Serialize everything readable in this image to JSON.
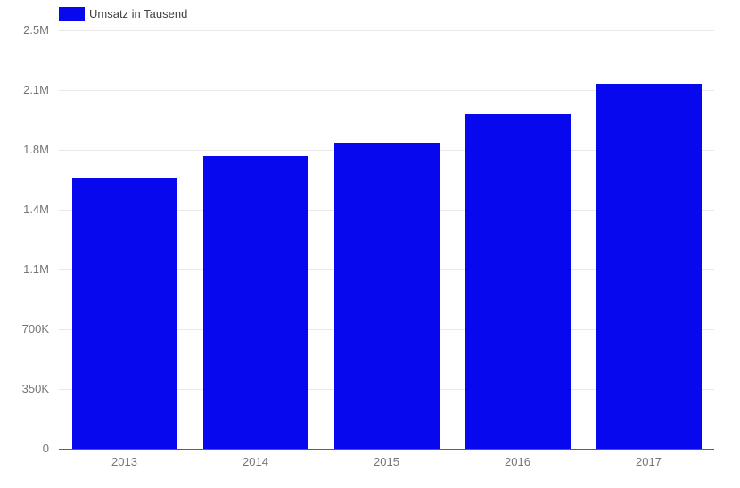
{
  "colors": {
    "bar": "#0808ef",
    "gridline": "#e9e9e9",
    "axis_line": "#5f5f5f",
    "tick_text": "#757575",
    "legend_text": "#424242",
    "background": "#ffffff"
  },
  "chart_data": {
    "type": "bar",
    "title": "",
    "categories": [
      "2013",
      "2014",
      "2015",
      "2016",
      "2017"
    ],
    "series": [
      {
        "name": "Umsatz in Tausend",
        "values": [
          1620000,
          1750000,
          1830000,
          2000000,
          2180000
        ]
      }
    ],
    "ylim": [
      0,
      2500000
    ],
    "yticks": [
      "0",
      "350K",
      "700K",
      "1.1M",
      "1.4M",
      "1.8M",
      "2.1M",
      "2.5M"
    ],
    "xlabel": "",
    "ylabel": "",
    "grid": true,
    "legend_position": "top-left"
  }
}
